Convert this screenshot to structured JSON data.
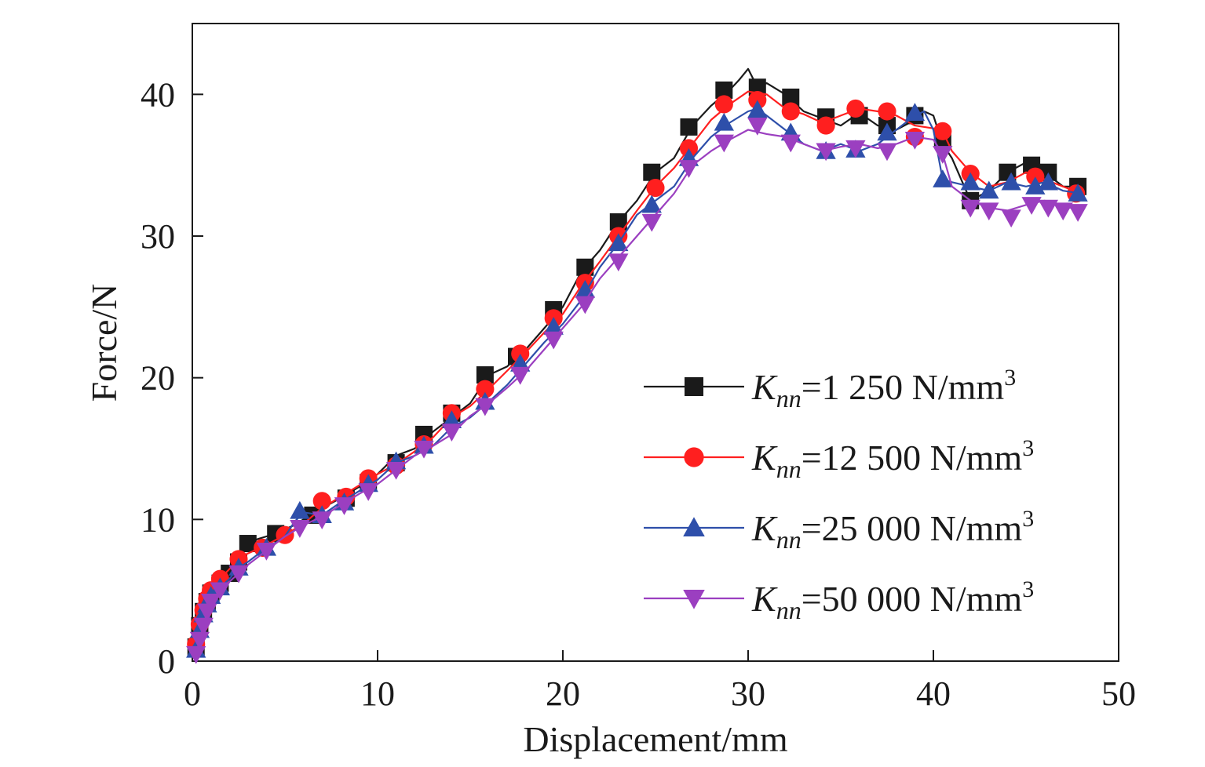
{
  "chart_data": {
    "type": "line",
    "title": "",
    "xlabel": "Displacement/mm",
    "ylabel": "Force/N",
    "xlim": [
      0,
      50
    ],
    "ylim": [
      0,
      45
    ],
    "xticks": [
      0,
      10,
      20,
      30,
      40,
      50
    ],
    "yticks": [
      0,
      10,
      20,
      30,
      40
    ],
    "grid": false,
    "legend_position": "bottom-right",
    "series": [
      {
        "name": "K_nn=1 250 N/mm3",
        "legend": {
          "k": "K",
          "sub": "nn",
          "rest": "=1 250 N/mm",
          "sup": "3"
        },
        "color": "#1a1a1a",
        "marker": "square",
        "x": [
          0.2,
          0.4,
          0.6,
          0.8,
          1.0,
          1.5,
          2.0,
          2.5,
          3.0,
          3.5,
          4.0,
          4.5,
          5.0,
          5.5,
          6.0,
          7.0,
          8.0,
          9.0,
          10.0,
          11.0,
          12.0,
          13.0,
          14.0,
          15.0,
          16.0,
          17.0,
          18.0,
          19.0,
          20.0,
          21.0,
          22.0,
          23.0,
          24.0,
          25.0,
          26.0,
          27.0,
          28.0,
          29.0,
          29.5,
          30.0,
          30.5,
          31.0,
          32.0,
          33.0,
          34.0,
          35.0,
          36.0,
          37.0,
          38.0,
          39.0,
          39.5,
          40.0,
          40.5,
          41.0,
          42.0,
          43.0,
          44.0,
          45.0,
          45.5,
          46.0,
          47.0,
          48.0
        ],
        "y": [
          1.0,
          2.5,
          3.5,
          4.2,
          4.8,
          5.5,
          6.2,
          7.0,
          8.3,
          8.6,
          8.8,
          9.0,
          9.3,
          9.6,
          10.0,
          10.8,
          11.5,
          12.3,
          13.2,
          14.5,
          15.0,
          16.2,
          17.2,
          18.2,
          20.2,
          20.8,
          22.0,
          23.5,
          25.0,
          27.5,
          29.0,
          31.0,
          32.5,
          34.5,
          35.5,
          37.8,
          39.2,
          40.3,
          41.0,
          41.8,
          40.5,
          40.8,
          40.0,
          38.8,
          38.3,
          37.8,
          38.7,
          37.8,
          37.5,
          38.2,
          38.8,
          38.5,
          36.5,
          35.5,
          32.5,
          33.2,
          34.5,
          35.2,
          35.0,
          34.5,
          33.5,
          33.5
        ],
        "markers_x": [
          0.2,
          0.4,
          0.6,
          0.8,
          1.0,
          1.5,
          2.0,
          2.5,
          3.0,
          4.5,
          6.5,
          8.3,
          9.5,
          11.0,
          12.5,
          14.0,
          15.8,
          17.5,
          19.5,
          21.2,
          23.0,
          24.8,
          26.8,
          28.7,
          30.5,
          32.3,
          34.2,
          36.0,
          37.5,
          39.0,
          40.5,
          42.0,
          44.0,
          45.3,
          46.2,
          47.8
        ],
        "markers_y": [
          1.0,
          2.5,
          3.5,
          4.2,
          4.8,
          5.5,
          6.2,
          7.0,
          8.3,
          9.0,
          10.3,
          11.5,
          12.6,
          14.0,
          16.0,
          17.5,
          20.2,
          21.5,
          24.8,
          27.8,
          31.0,
          34.5,
          37.7,
          40.3,
          40.5,
          39.8,
          38.4,
          38.5,
          37.8,
          38.5,
          36.8,
          32.5,
          34.5,
          35.0,
          34.5,
          33.5
        ]
      },
      {
        "name": "K_nn=12 500 N/mm3",
        "legend": {
          "k": "K",
          "sub": "nn",
          "rest": "=12 500 N/mm",
          "sup": "3"
        },
        "color": "#ff1f1f",
        "marker": "circle",
        "x": [
          0.2,
          0.4,
          0.6,
          0.8,
          1.0,
          1.5,
          2.0,
          2.5,
          3.0,
          3.5,
          4.0,
          5.0,
          6.0,
          7.0,
          8.0,
          9.0,
          10.0,
          11.0,
          12.0,
          13.0,
          14.0,
          15.0,
          16.0,
          17.0,
          18.0,
          19.0,
          20.0,
          21.0,
          22.0,
          23.0,
          24.0,
          25.0,
          26.0,
          27.0,
          28.0,
          29.0,
          30.0,
          31.0,
          32.0,
          33.0,
          34.0,
          35.0,
          36.0,
          37.0,
          38.0,
          39.0,
          40.0,
          40.5,
          41.0,
          42.0,
          43.0,
          44.0,
          45.0,
          46.0,
          47.0,
          48.0
        ],
        "y": [
          1.2,
          2.6,
          3.6,
          4.4,
          5.0,
          5.8,
          6.5,
          7.2,
          7.6,
          7.9,
          8.2,
          8.9,
          9.7,
          10.8,
          11.6,
          12.4,
          13.2,
          13.9,
          14.8,
          15.8,
          17.2,
          18.0,
          19.2,
          20.5,
          21.8,
          23.2,
          24.5,
          26.5,
          28.2,
          30.0,
          31.8,
          33.5,
          34.8,
          36.5,
          38.2,
          39.3,
          40.2,
          40.0,
          39.0,
          38.6,
          38.0,
          38.5,
          39.0,
          38.8,
          38.5,
          37.8,
          37.6,
          37.4,
          36.0,
          34.5,
          33.5,
          33.8,
          34.5,
          34.0,
          33.5,
          33.0
        ],
        "markers_x": [
          0.2,
          0.4,
          0.6,
          0.8,
          1.0,
          1.5,
          2.5,
          3.8,
          5.0,
          7.0,
          8.3,
          9.5,
          11.0,
          12.5,
          14.0,
          15.8,
          17.7,
          19.5,
          21.2,
          23.0,
          25.0,
          26.8,
          28.7,
          30.5,
          32.3,
          34.2,
          35.8,
          37.5,
          39.0,
          40.5,
          42.0,
          45.5,
          47.7
        ],
        "markers_y": [
          1.2,
          2.6,
          3.6,
          4.4,
          5.0,
          5.8,
          7.2,
          8.0,
          8.9,
          11.3,
          11.6,
          12.9,
          13.8,
          15.3,
          17.5,
          19.2,
          21.7,
          24.2,
          26.7,
          30.0,
          33.4,
          36.2,
          39.3,
          39.6,
          38.8,
          37.8,
          39.0,
          38.8,
          37.0,
          37.4,
          34.4,
          34.2,
          33.0
        ]
      },
      {
        "name": "K_nn=25 000 N/mm3",
        "legend": {
          "k": "K",
          "sub": "nn",
          "rest": "=25 000 N/mm",
          "sup": "3"
        },
        "color": "#2e4faa",
        "marker": "triangle-up",
        "x": [
          0.2,
          0.4,
          0.6,
          0.8,
          1.0,
          1.5,
          2.0,
          2.5,
          3.0,
          3.5,
          4.0,
          5.0,
          5.5,
          6.0,
          7.0,
          8.0,
          9.0,
          10.0,
          11.0,
          12.0,
          13.0,
          14.0,
          15.0,
          16.0,
          17.0,
          18.0,
          19.0,
          20.0,
          21.0,
          22.0,
          23.0,
          24.0,
          25.0,
          26.0,
          27.0,
          28.0,
          29.0,
          30.0,
          30.5,
          31.0,
          32.0,
          33.0,
          34.0,
          35.0,
          36.0,
          37.0,
          38.0,
          39.0,
          39.5,
          40.0,
          40.5,
          41.0,
          42.0,
          43.0,
          44.0,
          45.0,
          46.0,
          47.0,
          48.0
        ],
        "y": [
          0.8,
          2.2,
          3.3,
          4.0,
          4.6,
          5.2,
          5.8,
          6.6,
          7.0,
          7.5,
          7.9,
          8.8,
          9.8,
          10.5,
          10.3,
          11.2,
          12.0,
          12.8,
          14.0,
          14.5,
          15.2,
          16.5,
          17.2,
          18.3,
          19.5,
          21.0,
          22.5,
          23.8,
          25.5,
          27.8,
          29.5,
          31.5,
          32.5,
          33.5,
          35.5,
          37.0,
          38.0,
          38.8,
          39.0,
          38.5,
          37.5,
          36.5,
          36.0,
          36.5,
          36.0,
          36.5,
          37.5,
          38.5,
          38.8,
          37.5,
          34.0,
          33.8,
          33.5,
          33.2,
          33.8,
          33.5,
          33.8,
          33.2,
          33.0
        ],
        "markers_x": [
          0.2,
          0.4,
          0.6,
          0.8,
          1.0,
          1.5,
          2.5,
          4.0,
          5.8,
          7.0,
          8.2,
          9.5,
          11.0,
          12.5,
          14.0,
          15.8,
          17.7,
          19.5,
          21.2,
          23.0,
          24.8,
          26.8,
          28.7,
          30.5,
          32.3,
          34.2,
          35.8,
          37.5,
          39.0,
          40.5,
          42.0,
          43.0,
          44.2,
          45.5,
          46.2,
          47.8
        ],
        "markers_y": [
          0.8,
          2.2,
          3.3,
          4.0,
          4.6,
          5.2,
          6.6,
          8.0,
          10.6,
          10.3,
          11.2,
          12.5,
          14.1,
          15.2,
          17.0,
          18.3,
          21.0,
          23.6,
          26.2,
          29.5,
          32.2,
          35.5,
          38.0,
          38.9,
          37.3,
          36.0,
          36.1,
          37.3,
          38.7,
          34.0,
          33.8,
          33.2,
          33.8,
          33.5,
          33.8,
          33.0
        ]
      },
      {
        "name": "K_nn=50 000 N/mm3",
        "legend": {
          "k": "K",
          "sub": "nn",
          "rest": "=50 000 N/mm",
          "sup": "3"
        },
        "color": "#9b3fc0",
        "marker": "triangle-down",
        "x": [
          0.2,
          0.4,
          0.6,
          0.8,
          1.0,
          1.5,
          2.0,
          2.5,
          3.0,
          4.0,
          5.0,
          6.0,
          7.0,
          8.0,
          9.0,
          10.0,
          11.0,
          12.0,
          13.0,
          14.0,
          15.0,
          16.0,
          17.0,
          18.0,
          19.0,
          20.0,
          21.0,
          22.0,
          23.0,
          24.0,
          25.0,
          26.0,
          27.0,
          28.0,
          29.0,
          30.0,
          31.0,
          32.0,
          33.0,
          34.0,
          35.0,
          36.0,
          37.0,
          38.0,
          39.0,
          40.0,
          40.5,
          41.0,
          42.0,
          43.0,
          44.0,
          45.0,
          46.0,
          47.0,
          48.0
        ],
        "y": [
          0.5,
          1.5,
          2.5,
          3.5,
          4.2,
          5.0,
          5.6,
          6.2,
          6.8,
          7.8,
          8.8,
          9.6,
          10.2,
          11.0,
          11.8,
          12.5,
          13.5,
          14.5,
          15.2,
          16.0,
          17.3,
          18.2,
          19.3,
          20.5,
          22.0,
          23.5,
          25.0,
          27.0,
          28.5,
          30.0,
          31.5,
          33.0,
          35.0,
          36.0,
          36.8,
          37.5,
          37.2,
          37.0,
          36.5,
          36.0,
          36.3,
          36.5,
          36.2,
          36.5,
          37.0,
          36.8,
          35.8,
          33.5,
          32.5,
          32.0,
          31.8,
          32.2,
          32.5,
          32.0,
          32.0
        ],
        "markers_x": [
          0.2,
          0.4,
          0.6,
          0.8,
          1.0,
          1.5,
          2.5,
          4.0,
          5.8,
          7.0,
          8.2,
          9.5,
          11.0,
          12.5,
          14.0,
          15.8,
          17.7,
          19.5,
          21.2,
          23.0,
          24.8,
          26.8,
          28.7,
          30.5,
          32.3,
          34.2,
          35.8,
          37.5,
          39.0,
          40.5,
          42.0,
          43.0,
          44.2,
          45.3,
          46.2,
          47.0,
          47.8
        ],
        "markers_y": [
          0.5,
          1.5,
          2.5,
          3.5,
          4.2,
          5.0,
          6.2,
          7.8,
          9.4,
          10.0,
          11.0,
          12.0,
          13.5,
          15.0,
          16.2,
          18.0,
          20.2,
          22.7,
          25.2,
          28.2,
          31.0,
          34.8,
          36.6,
          37.8,
          36.6,
          36.0,
          36.2,
          36.0,
          36.8,
          35.8,
          32.0,
          31.8,
          31.3,
          32.2,
          32.0,
          31.8,
          31.7
        ]
      }
    ]
  }
}
